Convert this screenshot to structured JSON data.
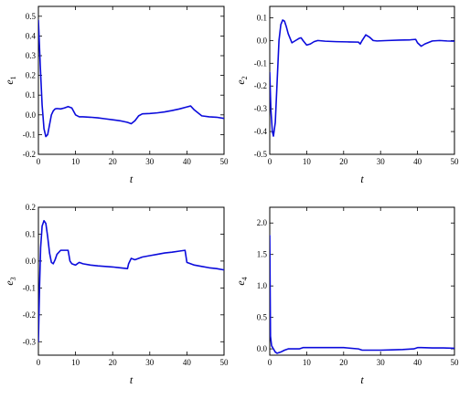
{
  "chart_data": [
    {
      "type": "line",
      "xlabel": "t",
      "ylabel": {
        "base": "e",
        "sub": "1"
      },
      "xlim": [
        0,
        50
      ],
      "ylim": [
        -0.2,
        0.55
      ],
      "xticks": [
        0,
        10,
        20,
        30,
        40,
        50
      ],
      "xtick_labels": [
        "0",
        "10",
        "20",
        "30",
        "40",
        "50"
      ],
      "yticks": [
        -0.2,
        -0.1,
        0.0,
        0.1,
        0.2,
        0.3,
        0.4,
        0.5
      ],
      "ytick_labels": [
        "-0.2",
        "-0.1",
        "0.0",
        "0.1",
        "0.2",
        "0.3",
        "0.4",
        "0.5"
      ],
      "color": "#0b0bdc",
      "x": [
        0,
        0.5,
        1,
        1.5,
        2,
        2.5,
        3,
        3.5,
        4,
        4.5,
        5,
        6,
        7,
        8,
        9,
        10,
        11,
        12,
        14,
        16,
        18,
        20,
        22,
        24,
        25,
        26,
        27,
        28,
        30,
        32,
        34,
        36,
        38,
        40,
        41,
        42,
        44,
        46,
        48,
        50
      ],
      "y": [
        0.48,
        0.25,
        0.05,
        -0.07,
        -0.11,
        -0.1,
        -0.05,
        0.0,
        0.02,
        0.03,
        0.032,
        0.03,
        0.035,
        0.042,
        0.035,
        0.0,
        -0.01,
        -0.01,
        -0.012,
        -0.015,
        -0.02,
        -0.025,
        -0.03,
        -0.038,
        -0.045,
        -0.03,
        -0.005,
        0.005,
        0.007,
        0.01,
        0.015,
        0.022,
        0.03,
        0.04,
        0.045,
        0.025,
        -0.005,
        -0.01,
        -0.012,
        -0.018
      ]
    },
    {
      "type": "line",
      "xlabel": "t",
      "ylabel": {
        "base": "e",
        "sub": "2"
      },
      "xlim": [
        0,
        50
      ],
      "ylim": [
        -0.5,
        0.15
      ],
      "xticks": [
        0,
        10,
        20,
        30,
        40,
        50
      ],
      "xtick_labels": [
        "0",
        "10",
        "20",
        "30",
        "40",
        "50"
      ],
      "yticks": [
        -0.5,
        -0.4,
        -0.3,
        -0.2,
        -0.1,
        0.0,
        0.1
      ],
      "ytick_labels": [
        "-0.5",
        "-0.4",
        "-0.3",
        "-0.2",
        "-0.1",
        "0.0",
        "0.1"
      ],
      "color": "#0b0bdc",
      "x": [
        0,
        0.3,
        0.7,
        1,
        1.5,
        2,
        2.5,
        3,
        3.5,
        4,
        4.5,
        5,
        6,
        7,
        8,
        8.5,
        9,
        10,
        11,
        12,
        13,
        15,
        18,
        21,
        24,
        24.5,
        25,
        26,
        27,
        28,
        29,
        32,
        35,
        38,
        39.5,
        40,
        41,
        42,
        44,
        46,
        48,
        50
      ],
      "y": [
        -0.14,
        -0.3,
        -0.4,
        -0.42,
        -0.36,
        -0.18,
        0.0,
        0.07,
        0.09,
        0.085,
        0.06,
        0.03,
        -0.01,
        0.0,
        0.01,
        0.012,
        0.0,
        -0.02,
        -0.015,
        -0.005,
        0.0,
        -0.003,
        -0.005,
        -0.006,
        -0.007,
        -0.015,
        0.0,
        0.025,
        0.015,
        0.0,
        -0.002,
        0.0,
        0.002,
        0.003,
        0.005,
        -0.01,
        -0.025,
        -0.015,
        -0.002,
        0.0,
        -0.002,
        -0.003
      ]
    },
    {
      "type": "line",
      "xlabel": "t",
      "ylabel": {
        "base": "e",
        "sub": "3"
      },
      "xlim": [
        0,
        50
      ],
      "ylim": [
        -0.35,
        0.2
      ],
      "xticks": [
        0,
        10,
        20,
        30,
        40,
        50
      ],
      "xtick_labels": [
        "0",
        "10",
        "20",
        "30",
        "40",
        "50"
      ],
      "yticks": [
        -0.3,
        -0.2,
        -0.1,
        0.0,
        0.1,
        0.2
      ],
      "ytick_labels": [
        "-0.3",
        "-0.2",
        "-0.1",
        "0.0",
        "0.1",
        "0.2"
      ],
      "color": "#0b0bdc",
      "x": [
        0,
        0.3,
        0.6,
        1,
        1.5,
        2,
        2.5,
        3,
        3.5,
        4,
        4.5,
        5,
        6,
        7,
        8,
        8.5,
        9,
        10,
        11,
        12,
        14,
        16,
        18,
        20,
        22,
        24,
        24.3,
        25,
        26,
        27,
        28,
        30,
        32,
        34,
        36,
        38,
        39.5,
        40,
        41,
        42,
        44,
        46,
        48,
        50
      ],
      "y": [
        -0.3,
        -0.1,
        0.05,
        0.13,
        0.15,
        0.14,
        0.09,
        0.03,
        -0.005,
        -0.01,
        0.005,
        0.025,
        0.04,
        0.04,
        0.04,
        0.0,
        -0.01,
        -0.015,
        -0.005,
        -0.01,
        -0.015,
        -0.018,
        -0.02,
        -0.022,
        -0.025,
        -0.028,
        -0.01,
        0.01,
        0.005,
        0.01,
        0.015,
        0.02,
        0.025,
        0.03,
        0.033,
        0.037,
        0.04,
        -0.005,
        -0.01,
        -0.015,
        -0.02,
        -0.025,
        -0.028,
        -0.033
      ]
    },
    {
      "type": "line",
      "xlabel": "t",
      "ylabel": {
        "base": "e",
        "sub": "4"
      },
      "xlim": [
        0,
        50
      ],
      "ylim": [
        -0.1,
        2.25
      ],
      "xticks": [
        0,
        10,
        20,
        30,
        40,
        50
      ],
      "xtick_labels": [
        "0",
        "10",
        "20",
        "30",
        "40",
        "50"
      ],
      "yticks": [
        0.0,
        0.5,
        1.0,
        1.5,
        2.0
      ],
      "ytick_labels": [
        "0.0",
        "0.5",
        "1.0",
        "1.5",
        "2.0"
      ],
      "color": "#0b0bdc",
      "x": [
        0,
        0.2,
        0.5,
        1,
        1.5,
        2,
        3,
        4,
        5,
        6,
        8,
        9,
        10,
        12,
        15,
        20,
        24,
        25,
        26,
        28,
        30,
        33,
        36,
        39,
        40,
        41,
        44,
        47,
        50
      ],
      "y": [
        1.8,
        0.2,
        0.05,
        0.0,
        -0.05,
        -0.07,
        -0.05,
        -0.02,
        0.0,
        0.0,
        0.0,
        0.02,
        0.02,
        0.02,
        0.02,
        0.02,
        0.0,
        -0.02,
        -0.02,
        -0.02,
        -0.02,
        -0.015,
        -0.01,
        0.0,
        0.02,
        0.02,
        0.015,
        0.015,
        0.01
      ]
    }
  ]
}
